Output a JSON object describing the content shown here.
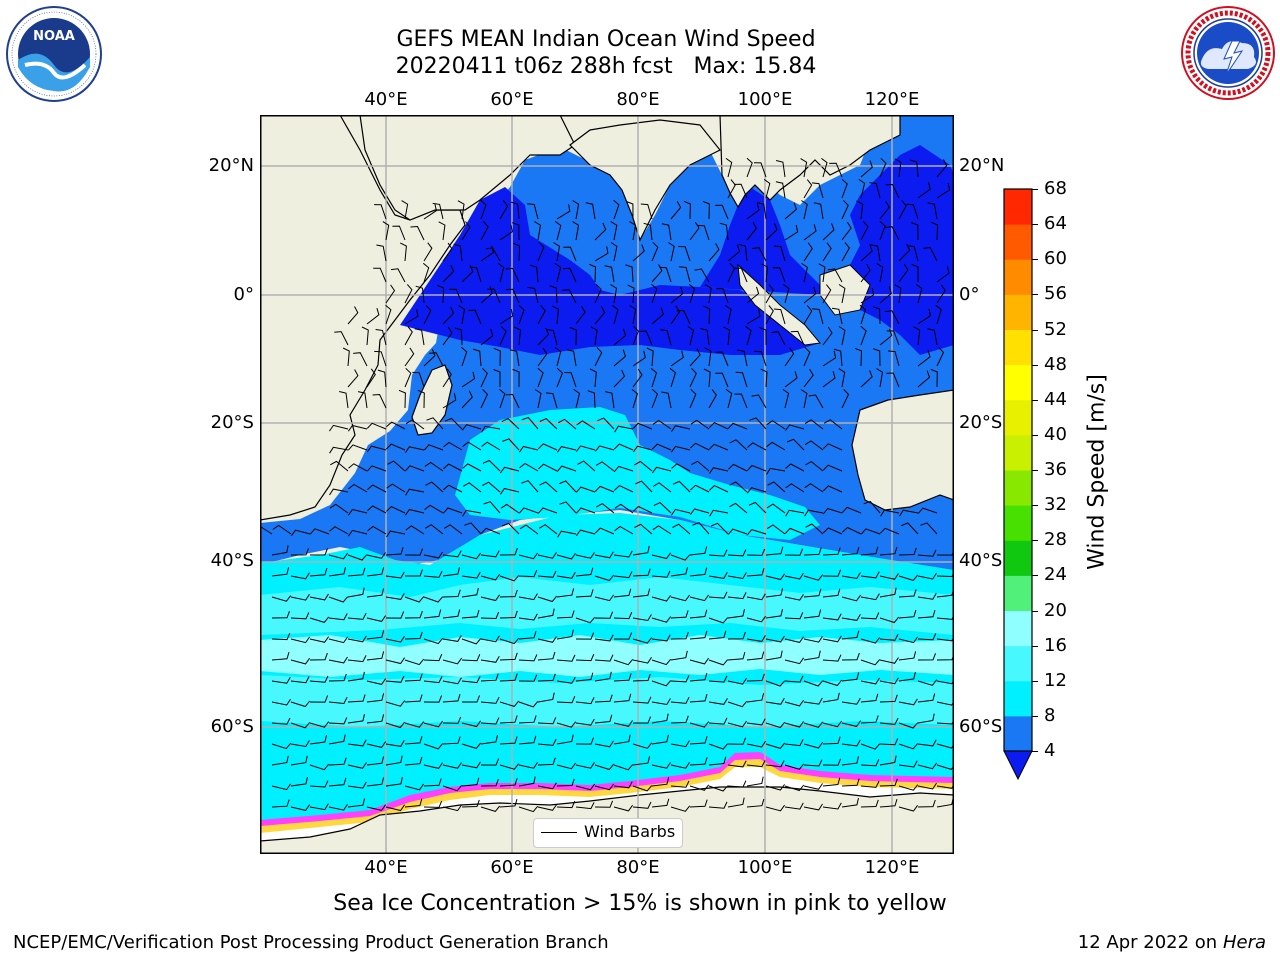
{
  "title": {
    "line1": "GEFS MEAN Indian Ocean Wind Speed",
    "line2": "20220411 t06z 288h fcst   Max: 15.84"
  },
  "logos": {
    "left": {
      "name": "noaa-logo",
      "text": "NOAA",
      "ring_text": "NATIONAL OCEANIC AND ATMOSPHERIC ADMINISTRATION · U.S. DEPARTMENT OF COMMERCE"
    },
    "right": {
      "name": "nws-logo",
      "ring_text": "NATIONAL WEATHER SERVICE"
    }
  },
  "map": {
    "lon_labels": [
      "40°E",
      "60°E",
      "80°E",
      "100°E",
      "120°E"
    ],
    "lat_labels_left": [
      "20°N",
      "0°",
      "20°S",
      "40°S",
      "60°S"
    ],
    "lat_labels_right": [
      "20°N",
      "0°",
      "20°S",
      "40°S",
      "60°S"
    ],
    "legend_label": "Wind Barbs",
    "colors": {
      "land": "#efefdf",
      "ocean_4_8": "#1a78f5",
      "ocean_0_4": "#0c1cf0",
      "ocean_8_12": "#00f0ff",
      "ocean_12_16": "#48f8ff",
      "ocean_16_20": "#90ffff",
      "ice_pink": "#ff40ff",
      "ice_yellow": "#ffd840",
      "gridline": "#b0b0b0"
    }
  },
  "colorbar": {
    "label": "Wind Speed [m/s]",
    "ticks": [
      "4",
      "8",
      "12",
      "16",
      "20",
      "24",
      "28",
      "32",
      "36",
      "40",
      "44",
      "48",
      "52",
      "56",
      "60",
      "64",
      "68"
    ],
    "colors": [
      "#1a78f5",
      "#00f0ff",
      "#48f8ff",
      "#90ffff",
      "#50f07a",
      "#10c810",
      "#48e000",
      "#88e800",
      "#c8f000",
      "#e8f000",
      "#ffff00",
      "#ffe000",
      "#ffb400",
      "#ff8c00",
      "#ff5a00",
      "#ff2800"
    ],
    "under_color": "#0c1cf0"
  },
  "caption": "Sea Ice Concentration > 15% is shown in pink to yellow",
  "footer": {
    "left": "NCEP/EMC/Verification Post Processing Product Generation Branch",
    "right_prefix": "12 Apr 2022 on ",
    "right_machine": "Hera"
  }
}
